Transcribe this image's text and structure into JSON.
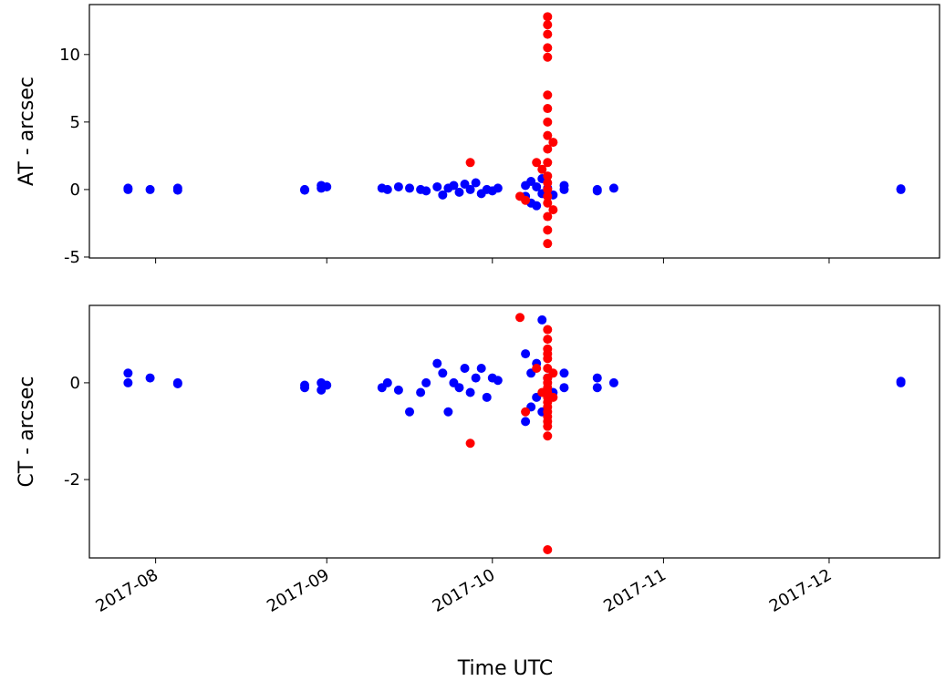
{
  "chart_data": [
    {
      "type": "scatter",
      "ylabel": "AT - arcsec",
      "ylim": [
        -5.07,
        13.7
      ],
      "yticks": [
        -5,
        0,
        5,
        10
      ],
      "series": [
        {
          "color": "#0000ff",
          "x": [
            "2017-07-27",
            "2017-07-27",
            "2017-07-31",
            "2017-08-05",
            "2017-08-05",
            "2017-08-28",
            "2017-08-28",
            "2017-08-31",
            "2017-08-31",
            "2017-09-01",
            "2017-09-11",
            "2017-09-12",
            "2017-09-14",
            "2017-09-16",
            "2017-09-18",
            "2017-09-19",
            "2017-09-21",
            "2017-09-22",
            "2017-09-23",
            "2017-09-24",
            "2017-09-25",
            "2017-09-26",
            "2017-09-27",
            "2017-09-28",
            "2017-09-29",
            "2017-09-30",
            "2017-10-01",
            "2017-10-02",
            "2017-10-07",
            "2017-10-07",
            "2017-10-08",
            "2017-10-08",
            "2017-10-09",
            "2017-10-09",
            "2017-10-10",
            "2017-10-10",
            "2017-10-11",
            "2017-10-12",
            "2017-10-14",
            "2017-10-14",
            "2017-10-20",
            "2017-10-20",
            "2017-10-23",
            "2017-12-14",
            "2017-12-14"
          ],
          "values": [
            0.1,
            0.0,
            0.0,
            0.1,
            -0.05,
            0.0,
            -0.05,
            0.3,
            0.1,
            0.2,
            0.1,
            0.0,
            0.2,
            0.1,
            0.0,
            -0.1,
            0.2,
            -0.4,
            0.1,
            0.3,
            -0.2,
            0.4,
            0.0,
            0.5,
            -0.3,
            0.0,
            -0.1,
            0.1,
            0.3,
            -0.5,
            0.6,
            -1.0,
            0.2,
            -1.2,
            0.8,
            -0.3,
            0.1,
            -0.4,
            0.0,
            0.3,
            -0.1,
            0.0,
            0.1,
            0.0,
            0.05
          ]
        },
        {
          "color": "#ff0000",
          "x": [
            "2017-09-27",
            "2017-10-06",
            "2017-10-07",
            "2017-10-09",
            "2017-10-10",
            "2017-10-11",
            "2017-10-11",
            "2017-10-11",
            "2017-10-11",
            "2017-10-11",
            "2017-10-11",
            "2017-10-11",
            "2017-10-11",
            "2017-10-11",
            "2017-10-11",
            "2017-10-11",
            "2017-10-11",
            "2017-10-11",
            "2017-10-11",
            "2017-10-11",
            "2017-10-11",
            "2017-10-11",
            "2017-10-11",
            "2017-10-11",
            "2017-10-12",
            "2017-10-12"
          ],
          "values": [
            2.0,
            -0.5,
            -0.8,
            2.0,
            1.5,
            12.8,
            12.2,
            11.5,
            10.5,
            9.8,
            7.0,
            6.0,
            5.0,
            4.0,
            3.0,
            2.0,
            1.0,
            0.0,
            -1.0,
            -2.0,
            -3.0,
            -4.0,
            0.5,
            -0.5,
            3.5,
            -1.5
          ]
        }
      ]
    },
    {
      "type": "scatter",
      "ylabel": "CT - arcsec",
      "xlabel": "Time UTC",
      "ylim": [
        -3.62,
        1.6
      ],
      "yticks": [
        -2,
        0
      ],
      "xlim": [
        "2017-07-20",
        "2017-12-21"
      ],
      "xticks": [
        {
          "value": "2017-08-01",
          "label": "2017-08"
        },
        {
          "value": "2017-09-01",
          "label": "2017-09"
        },
        {
          "value": "2017-10-01",
          "label": "2017-10"
        },
        {
          "value": "2017-11-01",
          "label": "2017-11"
        },
        {
          "value": "2017-12-01",
          "label": "2017-12"
        }
      ],
      "series": [
        {
          "color": "#0000ff",
          "x": [
            "2017-07-27",
            "2017-07-27",
            "2017-07-31",
            "2017-08-05",
            "2017-08-05",
            "2017-08-28",
            "2017-08-28",
            "2017-08-31",
            "2017-08-31",
            "2017-09-01",
            "2017-09-11",
            "2017-09-12",
            "2017-09-14",
            "2017-09-16",
            "2017-09-18",
            "2017-09-19",
            "2017-09-21",
            "2017-09-22",
            "2017-09-23",
            "2017-09-24",
            "2017-09-25",
            "2017-09-26",
            "2017-09-27",
            "2017-09-28",
            "2017-09-29",
            "2017-09-30",
            "2017-10-01",
            "2017-10-02",
            "2017-10-07",
            "2017-10-07",
            "2017-10-08",
            "2017-10-08",
            "2017-10-09",
            "2017-10-09",
            "2017-10-10",
            "2017-10-10",
            "2017-10-11",
            "2017-10-12",
            "2017-10-14",
            "2017-10-14",
            "2017-10-20",
            "2017-10-20",
            "2017-10-23",
            "2017-12-14",
            "2017-12-14"
          ],
          "values": [
            0.2,
            0.0,
            0.1,
            0.0,
            -0.02,
            -0.05,
            -0.1,
            0.0,
            -0.15,
            -0.05,
            -0.1,
            0.0,
            -0.15,
            -0.6,
            -0.2,
            0.0,
            0.4,
            0.2,
            -0.6,
            0.0,
            -0.1,
            0.3,
            -0.2,
            0.1,
            0.3,
            -0.3,
            0.1,
            0.05,
            0.6,
            -0.8,
            0.2,
            -0.5,
            0.4,
            -0.3,
            1.3,
            -0.6,
            0.1,
            -0.2,
            -0.1,
            0.2,
            0.1,
            -0.1,
            0.0,
            0.0,
            0.03
          ]
        },
        {
          "color": "#ff0000",
          "x": [
            "2017-09-27",
            "2017-10-06",
            "2017-10-07",
            "2017-10-09",
            "2017-10-10",
            "2017-10-11",
            "2017-10-11",
            "2017-10-11",
            "2017-10-11",
            "2017-10-11",
            "2017-10-11",
            "2017-10-11",
            "2017-10-11",
            "2017-10-11",
            "2017-10-11",
            "2017-10-11",
            "2017-10-11",
            "2017-10-11",
            "2017-10-11",
            "2017-10-11",
            "2017-10-11",
            "2017-10-11",
            "2017-10-11",
            "2017-10-11",
            "2017-10-12",
            "2017-10-12"
          ],
          "values": [
            -1.25,
            1.35,
            -0.6,
            0.3,
            -0.2,
            1.1,
            0.9,
            0.7,
            0.5,
            0.3,
            0.1,
            0.0,
            -0.1,
            -0.2,
            -0.3,
            -0.4,
            -0.5,
            -0.6,
            -0.7,
            -0.8,
            -0.9,
            -1.1,
            -3.45,
            0.6,
            0.2,
            -0.3
          ]
        }
      ]
    }
  ]
}
